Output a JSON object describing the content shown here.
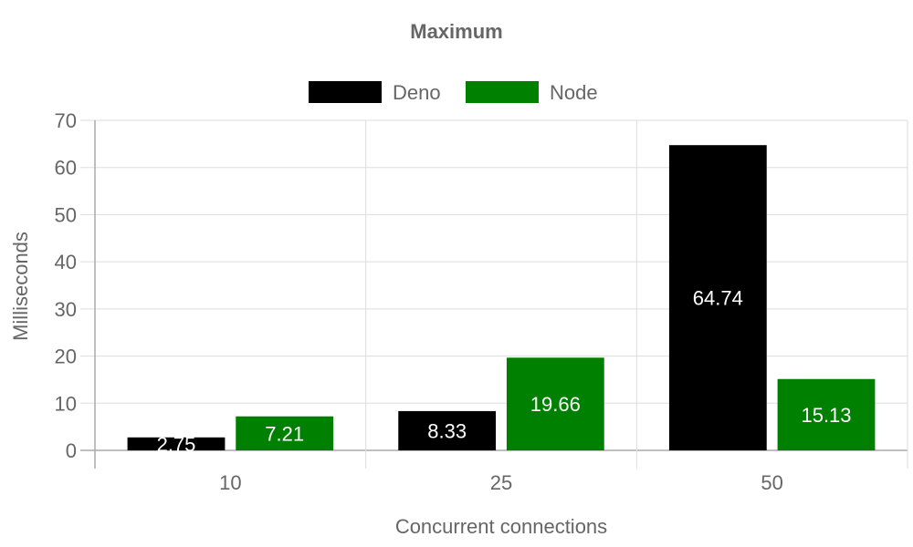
{
  "chart_data": {
    "type": "bar",
    "title": "Maximum",
    "xlabel": "Concurrent connections",
    "ylabel": "Milliseconds",
    "categories": [
      "10",
      "25",
      "50"
    ],
    "series": [
      {
        "name": "Deno",
        "color": "#000000",
        "values": [
          2.75,
          8.33,
          64.74
        ]
      },
      {
        "name": "Node",
        "color": "#008000",
        "values": [
          7.21,
          19.66,
          15.13
        ]
      }
    ],
    "ylim": [
      0,
      70
    ],
    "yticks": [
      0,
      10,
      20,
      30,
      40,
      50,
      60,
      70
    ],
    "grid": true,
    "legend_position": "top"
  }
}
